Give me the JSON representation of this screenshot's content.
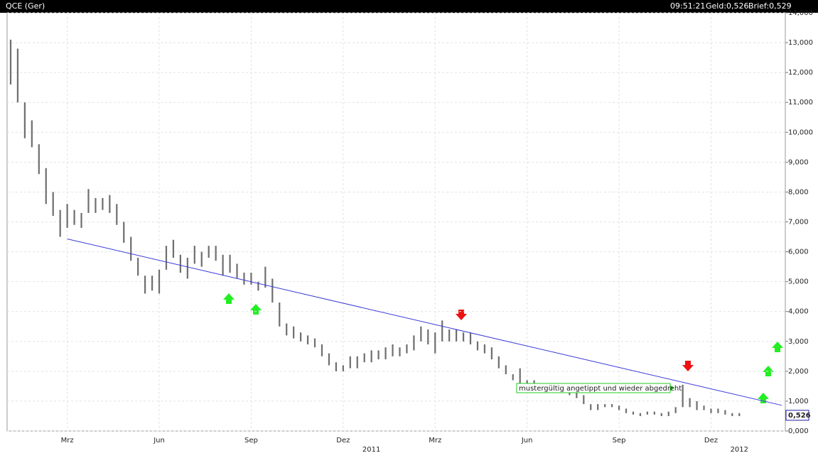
{
  "chart_data": {
    "type": "ohlc",
    "title": "QCE (Ger)",
    "time": "09:51:21",
    "bid": "Geld:0,526",
    "ask": "Brief:0,529",
    "color": "#6e6e6e",
    "grid": true,
    "ylim": [
      0,
      14
    ],
    "yticks": [
      {
        "value": 0,
        "label": "0,000"
      },
      {
        "value": 1,
        "label": "1,000"
      },
      {
        "value": 2,
        "label": "2,000"
      },
      {
        "value": 3,
        "label": "3,000"
      },
      {
        "value": 4,
        "label": "4,000"
      },
      {
        "value": 5,
        "label": "5,000"
      },
      {
        "value": 6,
        "label": "6,000"
      },
      {
        "value": 7,
        "label": "7,000"
      },
      {
        "value": 8,
        "label": "8,000"
      },
      {
        "value": 9,
        "label": "9,000"
      },
      {
        "value": 10,
        "label": "10,000"
      },
      {
        "value": 11,
        "label": "11,000"
      },
      {
        "value": 12,
        "label": "12,000"
      },
      {
        "value": 13,
        "label": "13,000"
      },
      {
        "value": 14,
        "label": "14,000"
      }
    ],
    "categories": [
      null,
      null,
      null,
      null,
      null,
      null,
      null,
      null,
      "Mrz",
      null,
      null,
      null,
      null,
      null,
      null,
      null,
      null,
      null,
      null,
      null,
      null,
      "Jun",
      null,
      null,
      null,
      null,
      null,
      null,
      null,
      null,
      null,
      null,
      null,
      null,
      "Sep",
      null,
      null,
      null,
      null,
      null,
      null,
      null,
      null,
      null,
      null,
      null,
      null,
      "Dez",
      null,
      null,
      null,
      "2011",
      null,
      null,
      null,
      null,
      null,
      null,
      null,
      null,
      "Mrz",
      null,
      null,
      null,
      null,
      null,
      null,
      null,
      null,
      null,
      null,
      null,
      null,
      "Jun",
      null,
      null,
      null,
      null,
      null,
      null,
      null,
      null,
      null,
      null,
      null,
      null,
      "Sep",
      null,
      null,
      null,
      null,
      null,
      null,
      null,
      null,
      null,
      null,
      null,
      null,
      "Dez",
      null,
      null,
      null,
      "2012",
      null,
      null,
      null,
      null,
      null,
      null
    ],
    "high": [
      13.1,
      12.8,
      11.0,
      10.4,
      9.6,
      8.8,
      8.0,
      7.4,
      7.6,
      7.4,
      7.3,
      8.1,
      7.8,
      7.8,
      7.9,
      7.6,
      7.0,
      6.5,
      5.8,
      5.2,
      5.2,
      5.4,
      6.2,
      6.4,
      5.9,
      5.8,
      6.2,
      6.0,
      6.2,
      6.2,
      5.9,
      5.9,
      5.6,
      5.3,
      5.3,
      5.0,
      5.5,
      5.1,
      4.3,
      3.6,
      3.5,
      3.3,
      3.2,
      3.1,
      2.9,
      2.6,
      2.3,
      2.2,
      2.5,
      2.5,
      2.6,
      2.7,
      2.7,
      2.8,
      2.9,
      2.8,
      2.9,
      3.2,
      3.5,
      3.4,
      3.3,
      3.7,
      3.4,
      3.4,
      3.3,
      3.3,
      3.0,
      2.9,
      2.8,
      2.5,
      2.2,
      1.9,
      2.1,
      1.7,
      1.7,
      1.6,
      1.6,
      1.5,
      1.4,
      1.4,
      1.3,
      1.2,
      0.9,
      0.9,
      0.9,
      0.9,
      0.85,
      0.75,
      0.65,
      0.6,
      0.65,
      0.65,
      0.6,
      0.65,
      0.8,
      1.55,
      1.1,
      1.0,
      0.85,
      0.75,
      0.75,
      0.7,
      0.6,
      0.6,
      null,
      null,
      null,
      null,
      null,
      null
    ],
    "low": [
      11.6,
      11.0,
      9.8,
      9.5,
      8.6,
      7.6,
      7.2,
      6.5,
      6.8,
      6.9,
      6.8,
      7.3,
      7.3,
      7.4,
      7.3,
      6.9,
      6.3,
      5.7,
      5.2,
      4.6,
      4.7,
      4.6,
      5.4,
      5.8,
      5.3,
      5.1,
      5.6,
      5.5,
      5.8,
      5.7,
      5.2,
      5.3,
      5.1,
      4.9,
      4.9,
      4.7,
      4.8,
      4.3,
      3.5,
      3.2,
      3.1,
      3.0,
      2.9,
      2.8,
      2.5,
      2.2,
      2.0,
      2.0,
      2.1,
      2.1,
      2.3,
      2.3,
      2.4,
      2.4,
      2.5,
      2.5,
      2.6,
      2.7,
      3.0,
      2.9,
      2.6,
      3.0,
      3.0,
      3.0,
      3.0,
      2.9,
      2.7,
      2.6,
      2.4,
      2.1,
      1.9,
      1.7,
      1.6,
      1.5,
      1.5,
      1.4,
      1.4,
      1.3,
      1.3,
      1.2,
      1.1,
      0.9,
      0.7,
      0.7,
      0.8,
      0.8,
      0.7,
      0.6,
      0.55,
      0.5,
      0.55,
      0.55,
      0.5,
      0.5,
      0.6,
      0.8,
      0.8,
      0.7,
      0.7,
      0.6,
      0.6,
      0.55,
      0.5,
      0.5,
      null,
      null,
      null,
      null,
      null,
      null
    ],
    "trendline": {
      "color": "#3a3ad8",
      "values": [
        null,
        null,
        null,
        null,
        null,
        null,
        null,
        null,
        6.43,
        null,
        null,
        null,
        null,
        null,
        null,
        null,
        null,
        null,
        null,
        null,
        null,
        null,
        null,
        null,
        null,
        null,
        null,
        null,
        null,
        null,
        null,
        null,
        null,
        null,
        null,
        null,
        null,
        null,
        null,
        null,
        null,
        null,
        null,
        null,
        null,
        null,
        null,
        null,
        null,
        null,
        null,
        null,
        null,
        null,
        null,
        null,
        null,
        null,
        null,
        null,
        null,
        null,
        null,
        null,
        null,
        null,
        null,
        null,
        null,
        null,
        null,
        null,
        null,
        null,
        null,
        null,
        null,
        null,
        null,
        null,
        null,
        null,
        null,
        null,
        null,
        null,
        null,
        null,
        null,
        null,
        null,
        null,
        null,
        null,
        null,
        null,
        null,
        null,
        null,
        null,
        null,
        null,
        null,
        null,
        null,
        null,
        null,
        null,
        null,
        0.86
      ]
    },
    "last_price": {
      "value": 0.526,
      "label": "0,526"
    },
    "annotation": "mustergültig angetippt und wieder abgedreht"
  }
}
